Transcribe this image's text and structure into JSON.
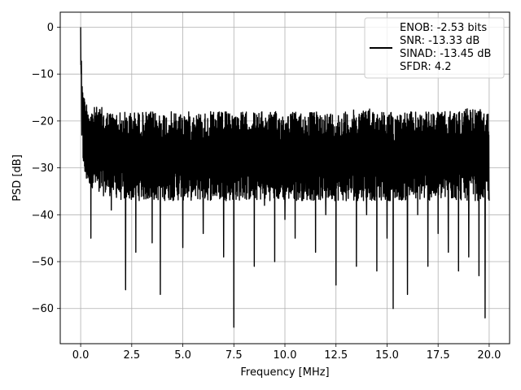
{
  "chart_data": {
    "type": "line",
    "title": "",
    "xlabel": "Frequency [MHz]",
    "ylabel": "PSD [dB]",
    "xlim": [
      -1.0,
      21.0
    ],
    "ylim": [
      -67.5,
      3.2
    ],
    "xticks": [
      0.0,
      2.5,
      5.0,
      7.5,
      10.0,
      12.5,
      15.0,
      17.5,
      20.0
    ],
    "xtick_labels": [
      "0.0",
      "2.5",
      "5.0",
      "7.5",
      "10.0",
      "12.5",
      "15.0",
      "17.5",
      "20.0"
    ],
    "yticks": [
      0,
      -10,
      -20,
      -30,
      -40,
      -50,
      -60
    ],
    "ytick_labels": [
      "0",
      "−10",
      "−20",
      "−30",
      "−40",
      "−50",
      "−60"
    ],
    "grid": true,
    "legend_position": "top-right",
    "legend_lines": [
      "ENOB: -2.53 bits",
      "SNR: -13.33 dB",
      "SINAD: -13.45 dB",
      "SFDR: 4.2"
    ],
    "series": [
      {
        "color": "#000000",
        "x": [
          0.0,
          0.02,
          0.05,
          0.1,
          0.2,
          0.35,
          0.5,
          0.7,
          0.9,
          1.2,
          1.5,
          2.0,
          2.2,
          2.5,
          2.7,
          3.0,
          3.5,
          3.9,
          4.5,
          5.0,
          5.5,
          6.0,
          6.5,
          7.0,
          7.5,
          8.0,
          8.5,
          9.0,
          9.5,
          10.0,
          10.5,
          11.0,
          11.5,
          12.0,
          12.5,
          13.0,
          13.5,
          14.0,
          14.5,
          15.0,
          15.3,
          15.5,
          16.0,
          16.5,
          17.0,
          17.5,
          18.0,
          18.5,
          19.0,
          19.5,
          19.8,
          20.0
        ],
        "y": [
          0,
          -8,
          -23,
          -14,
          -16,
          -30,
          -45,
          -19,
          -35,
          -22,
          -39,
          -25,
          -56,
          -20,
          -48,
          -24,
          -46,
          -57,
          -28,
          -47,
          -31,
          -44,
          -33,
          -49,
          -64,
          -30,
          -51,
          -38,
          -50,
          -41,
          -45,
          -35,
          -48,
          -40,
          -55,
          -37,
          -51,
          -40,
          -52,
          -45,
          -60,
          -36,
          -57,
          -40,
          -51,
          -44,
          -48,
          -52,
          -49,
          -53,
          -62,
          -37
        ]
      }
    ],
    "envelope": {
      "x": [
        0.0,
        0.1,
        0.2,
        0.5,
        1.0,
        1.5,
        2.0,
        3.0,
        4.0,
        5.0,
        6.0,
        7.0,
        8.0,
        9.0,
        10.0,
        11.0,
        12.0,
        13.0,
        14.0,
        15.0,
        16.0,
        17.0,
        18.0,
        19.0,
        20.0
      ],
      "upper": [
        0,
        -13,
        -15,
        -17,
        -17,
        -18,
        -18,
        -18,
        -18,
        -18,
        -18,
        -18,
        -18,
        -18,
        -18,
        -18,
        -18,
        -18,
        -17,
        -18,
        -18,
        -18,
        -18,
        -17,
        -18
      ],
      "lower": [
        -8,
        -28,
        -33,
        -34,
        -36,
        -36,
        -37,
        -37,
        -37,
        -37,
        -37,
        -37,
        -37,
        -37,
        -37,
        -37,
        -37,
        -37,
        -37,
        -37,
        -37,
        -37,
        -37,
        -37,
        -37
      ]
    }
  }
}
